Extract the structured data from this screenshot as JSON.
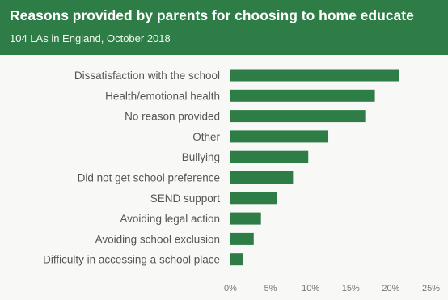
{
  "header": {
    "title": "Reasons provided by parents for choosing to home educate",
    "subtitle": "104 LAs in England, October 2018"
  },
  "colors": {
    "header_bg": "#2e7d46",
    "bar": "#2e7d46",
    "background": "#f8f8f6"
  },
  "chart_data": {
    "type": "bar",
    "orientation": "horizontal",
    "title": "Reasons provided by parents for choosing to home educate",
    "subtitle": "104 LAs in England, October 2018",
    "categories": [
      "Dissatisfaction with the school",
      "Health/emotional health",
      "No reason provided",
      "Other",
      "Bullying",
      "Did not get school preference",
      "SEND support",
      "Avoiding legal action",
      "Avoiding school exclusion",
      "Difficulty in accessing a school place"
    ],
    "values": [
      21,
      18,
      16.8,
      12.2,
      9.7,
      7.8,
      5.8,
      3.8,
      2.9,
      1.6
    ],
    "unit": "%",
    "xlim": [
      0,
      25
    ],
    "ticks": [
      "0%",
      "5%",
      "10%",
      "15%",
      "20%",
      "25%"
    ],
    "tick_values": [
      0,
      5,
      10,
      15,
      20,
      25
    ],
    "grid": false,
    "legend": "none"
  }
}
